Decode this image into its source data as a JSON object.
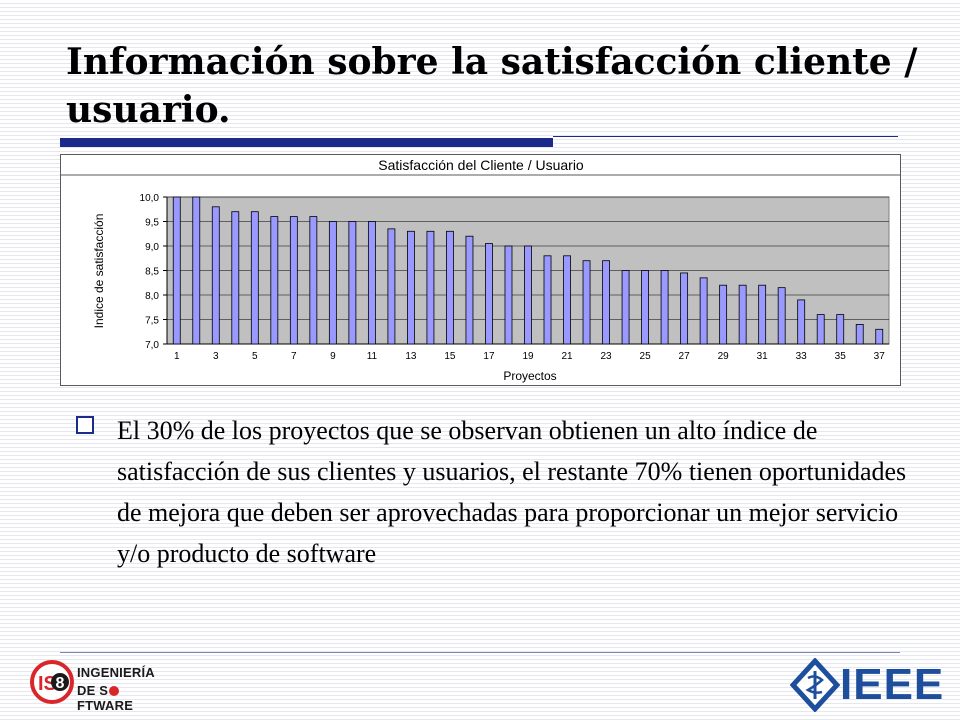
{
  "slide": {
    "title_line1": "Información sobre la satisfacción cliente /",
    "title_line2": "usuario.",
    "body": "El 30% de los proyectos que se observan obtienen un alto índice de satisfacción de sus clientes y usuarios, el restante 70% tienen oportunidades de mejora que deben ser aprovechadas para proporcionar un mejor servicio y/o producto de software",
    "accent_color": "#1c2a8c"
  },
  "footer": {
    "left_logo": {
      "line1": "INGENIERÍA",
      "line2_a": "DE S",
      "line2_b": "FTWARE",
      "badge": "IS8",
      "badge_digit": "8",
      "icon": "is-logo-icon"
    },
    "right_logo": {
      "text": "IEEE",
      "icon": "ieee-diamond-icon",
      "color": "#1d4f9c"
    }
  },
  "chart_data": {
    "type": "bar",
    "title": "Satisfacción del Cliente / Usuario",
    "xlabel": "Proyectos",
    "ylabel": "Indice de satisfacción",
    "ylim": [
      7.0,
      10.0
    ],
    "yticks": [
      "7,0",
      "7,5",
      "8,0",
      "8,5",
      "9,0",
      "9,5",
      "10,0"
    ],
    "xtick_labels": [
      "1",
      "3",
      "5",
      "7",
      "9",
      "11",
      "13",
      "15",
      "17",
      "19",
      "21",
      "23",
      "25",
      "27",
      "29",
      "31",
      "33",
      "35",
      "37"
    ],
    "categories": [
      1,
      2,
      3,
      4,
      5,
      6,
      7,
      8,
      9,
      10,
      11,
      12,
      13,
      14,
      15,
      16,
      17,
      18,
      19,
      20,
      21,
      22,
      23,
      24,
      25,
      26,
      27,
      28,
      29,
      30,
      31,
      32,
      33,
      34,
      35,
      36,
      37
    ],
    "values": [
      10.0,
      10.0,
      9.8,
      9.7,
      9.7,
      9.6,
      9.6,
      9.6,
      9.5,
      9.5,
      9.5,
      9.35,
      9.3,
      9.3,
      9.3,
      9.2,
      9.05,
      9.0,
      9.0,
      8.8,
      8.8,
      8.7,
      8.7,
      8.5,
      8.5,
      8.5,
      8.45,
      8.35,
      8.2,
      8.2,
      8.2,
      8.15,
      7.9,
      7.6,
      7.6,
      7.4,
      7.3
    ],
    "bar_color": "#9999ff",
    "plot_bg": "#c0c0c0",
    "grid": true,
    "legend": "none"
  }
}
